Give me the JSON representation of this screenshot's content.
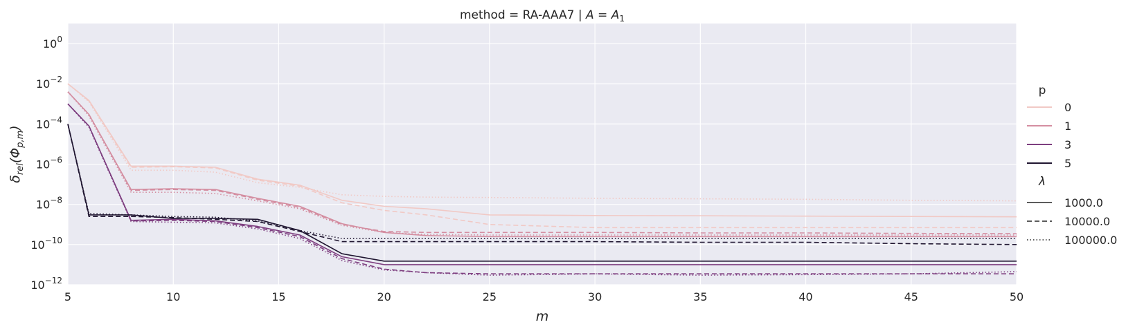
{
  "chart_data": {
    "type": "line",
    "title": "method = RA-AAA7 | A = A₁",
    "xlabel": "m",
    "ylabel": "δ_rel(Φ_p,m)",
    "xlim": [
      5,
      50
    ],
    "ylim": [
      1e-12,
      10
    ],
    "yscale": "log",
    "grid": true,
    "x_ticks": [
      5,
      10,
      15,
      20,
      25,
      30,
      35,
      40,
      45,
      50
    ],
    "y_tick_exponents": [
      0,
      -2,
      -4,
      -6,
      -8,
      -10,
      -12
    ],
    "legend": {
      "placement": "right",
      "hue_title": "p",
      "hue_entries": [
        {
          "label": "0",
          "color": "#f1c9c5"
        },
        {
          "label": "1",
          "color": "#d48ea1"
        },
        {
          "label": "3",
          "color": "#7e3f80"
        },
        {
          "label": "5",
          "color": "#1f1530"
        }
      ],
      "style_title": "λ",
      "style_entries": [
        {
          "label": "1000.0",
          "dash": "solid"
        },
        {
          "label": "10000.0",
          "dash": "dashed"
        },
        {
          "label": "100000.0",
          "dash": "dotted"
        }
      ]
    },
    "x": [
      5,
      6,
      8,
      10,
      12,
      14,
      16,
      18,
      20,
      22,
      25,
      30,
      35,
      40,
      45,
      50
    ],
    "series": [
      {
        "p": "0",
        "lambda": "1000.0",
        "color": "#f1c9c5",
        "dash": "solid",
        "values": [
          0.01,
          0.0015,
          8e-07,
          8e-07,
          7e-07,
          1.8e-07,
          9e-08,
          1.6e-08,
          8e-09,
          6e-09,
          3e-09,
          2.8e-09,
          2.7e-09,
          2.6e-09,
          2.5e-09,
          2.4e-09
        ]
      },
      {
        "p": "0",
        "lambda": "10000.0",
        "color": "#f1c9c5",
        "dash": "dashed",
        "values": [
          0.01,
          0.0014,
          7e-07,
          7.5e-07,
          6.5e-07,
          1.6e-07,
          8e-08,
          1.2e-08,
          5e-09,
          3e-09,
          1e-09,
          7e-10,
          7e-10,
          7e-10,
          7e-10,
          7e-10
        ]
      },
      {
        "p": "0",
        "lambda": "100000.0",
        "color": "#f1c9c5",
        "dash": "dotted",
        "values": [
          0.01,
          0.0013,
          5e-07,
          5e-07,
          4e-07,
          1.2e-07,
          7e-08,
          3e-08,
          2.5e-08,
          2.3e-08,
          2.2e-08,
          2e-08,
          1.9e-08,
          1.8e-08,
          1.6e-08,
          1.5e-08
        ]
      },
      {
        "p": "1",
        "lambda": "1000.0",
        "color": "#d48ea1",
        "dash": "solid",
        "values": [
          0.004,
          0.0003,
          5.5e-08,
          6e-08,
          5.5e-08,
          2e-08,
          8e-09,
          1.1e-09,
          4e-10,
          2.8e-10,
          2.5e-10,
          2.5e-10,
          2.5e-10,
          2.5e-10,
          2.5e-10,
          2.5e-10
        ]
      },
      {
        "p": "1",
        "lambda": "10000.0",
        "color": "#d48ea1",
        "dash": "dashed",
        "values": [
          0.004,
          0.0003,
          5e-08,
          5.5e-08,
          5e-08,
          1.8e-08,
          7e-09,
          1e-09,
          4.5e-10,
          4e-10,
          4e-10,
          4e-10,
          3.8e-10,
          3.8e-10,
          3.6e-10,
          3.5e-10
        ]
      },
      {
        "p": "1",
        "lambda": "100000.0",
        "color": "#d48ea1",
        "dash": "dotted",
        "values": [
          0.004,
          0.00025,
          4e-08,
          4e-08,
          3.5e-08,
          1.5e-08,
          6e-09,
          9e-10,
          4e-10,
          3.2e-10,
          3e-10,
          3e-10,
          3e-10,
          3e-10,
          3e-10,
          3e-10
        ]
      },
      {
        "p": "3",
        "lambda": "1000.0",
        "color": "#7e3f80",
        "dash": "solid",
        "values": [
          0.001,
          8e-05,
          1.6e-09,
          1.8e-09,
          1.5e-09,
          8e-10,
          3e-10,
          2.5e-11,
          1e-11,
          1e-11,
          1e-11,
          1e-11,
          1e-11,
          1e-11,
          1e-11,
          1e-11
        ]
      },
      {
        "p": "3",
        "lambda": "10000.0",
        "color": "#7e3f80",
        "dash": "dashed",
        "values": [
          0.001,
          8e-05,
          1.5e-09,
          1.6e-09,
          1.4e-09,
          7e-10,
          2.5e-10,
          2e-11,
          6e-12,
          4e-12,
          3.5e-12,
          3.5e-12,
          3.5e-12,
          3.5e-12,
          3.5e-12,
          3.5e-12
        ]
      },
      {
        "p": "3",
        "lambda": "100000.0",
        "color": "#7e3f80",
        "dash": "dotted",
        "values": [
          0.001,
          7e-05,
          1.4e-09,
          1.3e-09,
          1.2e-09,
          6e-10,
          2e-10,
          1.6e-11,
          5.5e-12,
          4e-12,
          3e-12,
          3.5e-12,
          3e-12,
          3.2e-12,
          3.5e-12,
          4.5e-12
        ]
      },
      {
        "p": "5",
        "lambda": "1000.0",
        "color": "#1f1530",
        "dash": "solid",
        "values": [
          0.0001,
          3e-09,
          3e-09,
          2e-09,
          2e-09,
          1.8e-09,
          5e-10,
          3.5e-11,
          1.5e-11,
          1.5e-11,
          1.5e-11,
          1.5e-11,
          1.5e-11,
          1.5e-11,
          1.5e-11,
          1.5e-11
        ]
      },
      {
        "p": "5",
        "lambda": "10000.0",
        "color": "#1f1530",
        "dash": "dashed",
        "values": [
          0.0001,
          2.5e-09,
          2.5e-09,
          2.2e-09,
          1.8e-09,
          1.4e-09,
          4.5e-10,
          1.4e-10,
          1.4e-10,
          1.4e-10,
          1.4e-10,
          1.4e-10,
          1.3e-10,
          1.3e-10,
          1.1e-10,
          1e-10
        ]
      },
      {
        "p": "5",
        "lambda": "100000.0",
        "color": "#1f1530",
        "dash": "dotted",
        "values": [
          0.0001,
          3.5e-09,
          3e-09,
          2.5e-09,
          2.3e-09,
          1.5e-09,
          5e-10,
          2e-10,
          2e-10,
          2e-10,
          2e-10,
          2e-10,
          2e-10,
          2e-10,
          2e-10,
          2e-10
        ]
      }
    ]
  }
}
